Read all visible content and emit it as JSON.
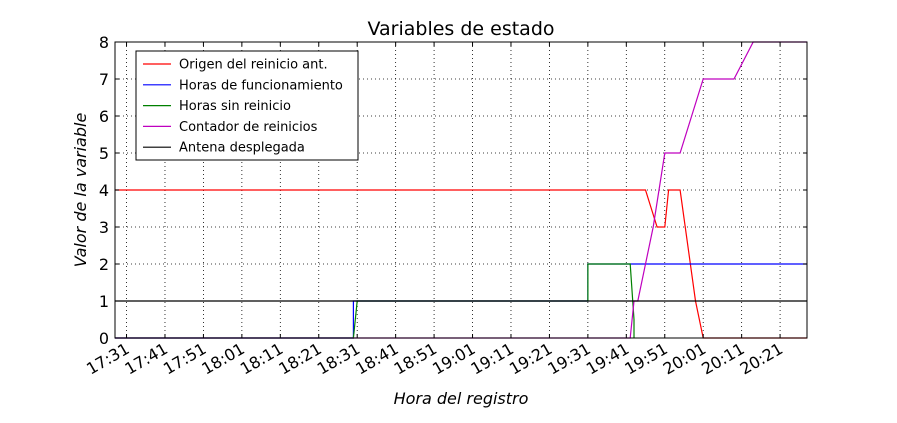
{
  "chart_data": {
    "type": "line",
    "title": "Variables de estado",
    "xlabel": "Hora del registro",
    "ylabel": "Valor de la variable",
    "xlim": [
      "17:28",
      "20:28"
    ],
    "ylim": [
      0,
      8
    ],
    "x_ticks": [
      "17:31",
      "17:41",
      "17:51",
      "18:01",
      "18:11",
      "18:21",
      "18:31",
      "18:41",
      "18:51",
      "19:01",
      "19:11",
      "19:21",
      "19:31",
      "19:41",
      "19:51",
      "20:01",
      "20:11",
      "20:21"
    ],
    "y_ticks": [
      0,
      1,
      2,
      3,
      4,
      5,
      6,
      7,
      8
    ],
    "grid": true,
    "legend_position": "top-left",
    "series": [
      {
        "name": "Origen del reinicio ant.",
        "color": "#ff0000",
        "points": [
          [
            "17:28",
            4
          ],
          [
            "19:45",
            4
          ],
          [
            "19:46",
            4
          ],
          [
            "19:49",
            3
          ],
          [
            "19:51",
            3
          ],
          [
            "19:52",
            4
          ],
          [
            "19:55",
            4
          ],
          [
            "19:59",
            1
          ],
          [
            "20:01",
            0
          ],
          [
            "20:28",
            0
          ]
        ]
      },
      {
        "name": "Horas de funcionamiento",
        "color": "#0000ff",
        "points": [
          [
            "17:28",
            0
          ],
          [
            "18:30",
            0
          ],
          [
            "18:30",
            1
          ],
          [
            "19:31",
            1
          ],
          [
            "19:31",
            2
          ],
          [
            "20:28",
            2
          ]
        ]
      },
      {
        "name": "Horas sin reinicio",
        "color": "#008000",
        "points": [
          [
            "17:28",
            0
          ],
          [
            "18:30",
            0
          ],
          [
            "18:31",
            1
          ],
          [
            "19:31",
            1
          ],
          [
            "19:31",
            2
          ],
          [
            "19:42",
            2
          ],
          [
            "19:43",
            0.5
          ],
          [
            "19:43",
            0
          ]
        ]
      },
      {
        "name": "Contador de reinicios",
        "color": "#bf00bf",
        "points": [
          [
            "17:28",
            0
          ],
          [
            "19:42",
            0
          ],
          [
            "19:43",
            1
          ],
          [
            "19:44",
            1
          ],
          [
            "19:48",
            3
          ],
          [
            "19:51",
            5
          ],
          [
            "19:55",
            5
          ],
          [
            "20:01",
            7
          ],
          [
            "20:09",
            7
          ],
          [
            "20:14",
            8
          ],
          [
            "20:28",
            8
          ]
        ]
      },
      {
        "name": "Antena desplegada",
        "color": "#000000",
        "points": [
          [
            "17:28",
            1
          ],
          [
            "20:28",
            1
          ]
        ]
      }
    ]
  }
}
